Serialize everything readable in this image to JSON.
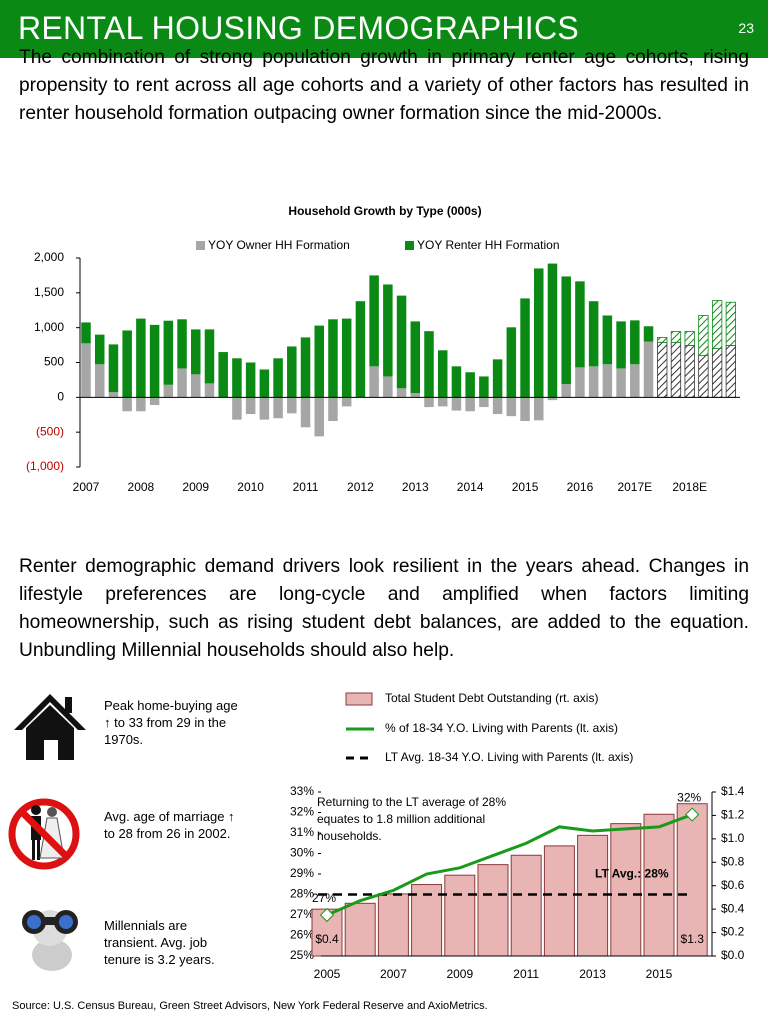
{
  "header": {
    "title": "RENTAL HOUSING DEMOGRAPHICS",
    "page_number": "23"
  },
  "intro": "The combination of strong population growth in primary renter age cohorts, rising propensity to rent across all age cohorts and a variety of other factors has resulted in renter household formation outpacing owner formation since the mid-2000s.",
  "chart_data": [
    {
      "type": "bar",
      "stacked": true,
      "title": "Household Growth by Type (000s)",
      "categories": [
        "2007",
        null,
        null,
        null,
        "2008",
        null,
        null,
        null,
        "2009",
        null,
        null,
        null,
        "2010",
        null,
        null,
        null,
        "2011",
        null,
        null,
        null,
        "2012",
        null,
        null,
        null,
        "2013",
        null,
        null,
        null,
        "2014",
        null,
        null,
        null,
        "2015",
        null,
        null,
        null,
        "2016",
        null,
        null,
        null,
        "2017E",
        null,
        null,
        null,
        "2018E",
        null,
        null,
        null
      ],
      "series": [
        {
          "name": "YOY Owner HH Formation",
          "color": "#a6a6a6",
          "values": [
            775,
            475,
            75,
            -200,
            -200,
            -110,
            180,
            415,
            330,
            200,
            0,
            -320,
            -240,
            -320,
            -300,
            -230,
            -430,
            -560,
            -340,
            -130,
            0,
            445,
            300,
            130,
            60,
            -140,
            -130,
            -190,
            -200,
            -140,
            -240,
            -270,
            -340,
            -330,
            -40,
            190,
            430,
            445,
            475,
            415,
            475,
            800,
            790,
            790,
            745,
            600,
            700,
            745
          ]
        },
        {
          "name": "YOY Renter HH Formation",
          "color": "#0a8a14",
          "values": [
            300,
            425,
            685,
            960,
            1130,
            1040,
            920,
            705,
            645,
            775,
            650,
            560,
            500,
            400,
            560,
            730,
            860,
            1030,
            1120,
            1130,
            1380,
            1305,
            1320,
            1330,
            1030,
            950,
            675,
            445,
            360,
            300,
            545,
            1005,
            1420,
            1850,
            1920,
            1545,
            1235,
            935,
            700,
            675,
            630,
            220,
            70,
            155,
            200,
            575,
            690,
            620
          ]
        }
      ],
      "hatched_from": 42,
      "ylim": [
        -1000,
        2000
      ],
      "yticks": [
        {
          "value": -1000,
          "label": "(1,000)"
        },
        {
          "value": -500,
          "label": "(500)"
        },
        0,
        500,
        {
          "value": 1000,
          "label": "1,000"
        },
        {
          "value": 1500,
          "label": "1,500"
        },
        {
          "value": 2000,
          "label": "2,000"
        }
      ],
      "negative_label_color": "#c00000"
    },
    {
      "type": "combo",
      "categories": [
        "2005",
        null,
        "2007",
        null,
        "2009",
        null,
        "2011",
        null,
        "2013",
        null,
        "2015",
        null
      ],
      "series": [
        {
          "name": "Total Student Debt Outstanding (rt. axis)",
          "type": "bar",
          "axis": "y2",
          "color": "#e8b4b4",
          "values": [
            0.4,
            0.45,
            0.53,
            0.61,
            0.69,
            0.78,
            0.86,
            0.94,
            1.03,
            1.13,
            1.21,
            1.3
          ],
          "value_labels": [
            "$0.4",
            null,
            null,
            null,
            null,
            null,
            null,
            null,
            null,
            null,
            null,
            "$1.3"
          ]
        },
        {
          "name": "% of 18-34 Y.O. Living with Parents (lt. axis)",
          "type": "line",
          "color": "#1a9a1a",
          "values": [
            27.0,
            27.7,
            28.2,
            29.0,
            29.3,
            29.9,
            30.5,
            31.3,
            31.1,
            31.2,
            31.3,
            31.9
          ],
          "value_labels": [
            "27%",
            null,
            null,
            null,
            null,
            null,
            null,
            null,
            null,
            null,
            null,
            "32%"
          ]
        },
        {
          "name": "LT Avg. 18-34 Y.O. Living with Parents (lt. axis)",
          "type": "hline",
          "color": "#000000",
          "value": 28,
          "value_label": "LT Avg.: 28%"
        }
      ],
      "annotation": "Returning to the LT average of 28% equates to 1.8 million additional households.",
      "ylim": [
        25,
        33
      ],
      "yticks": [
        {
          "value": 25,
          "label": "25%"
        },
        {
          "value": 26,
          "label": "26%"
        },
        {
          "value": 27,
          "label": "27%"
        },
        {
          "value": 28,
          "label": "28%"
        },
        {
          "value": 29,
          "label": "29%"
        },
        {
          "value": 30,
          "label": "30%"
        },
        {
          "value": 31,
          "label": "31%"
        },
        {
          "value": 32,
          "label": "32%"
        },
        {
          "value": 33,
          "label": "33%"
        }
      ],
      "y2lim": [
        0,
        1.4
      ],
      "y2ticks": [
        {
          "value": 0,
          "label": "$0.0"
        },
        {
          "value": 0.2,
          "label": "$0.2"
        },
        {
          "value": 0.4,
          "label": "$0.4"
        },
        {
          "value": 0.6,
          "label": "$0.6"
        },
        {
          "value": 0.8,
          "label": "$0.8"
        },
        {
          "value": 1.0,
          "label": "$1.0"
        },
        {
          "value": 1.2,
          "label": "$1.2"
        },
        {
          "value": 1.4,
          "label": "$1.4"
        }
      ]
    }
  ],
  "body": "Renter demographic demand drivers look resilient in the years ahead. Changes in lifestyle preferences are long-cycle and amplified when factors limiting homeownership, such as rising student debt balances, are added to the equation.  Unbundling Millennial households should also help.",
  "facts": [
    "Peak home-buying age ↑ to 33 from 29 in the 1970s.",
    "Avg. age of marriage ↑ to 28 from 26 in 2002.",
    "Millennials are transient. Avg. job tenure is 3.2 years."
  ],
  "source": "Source:  U.S. Census Bureau, Green Street Advisors, New York Federal Reserve and AxioMetrics."
}
